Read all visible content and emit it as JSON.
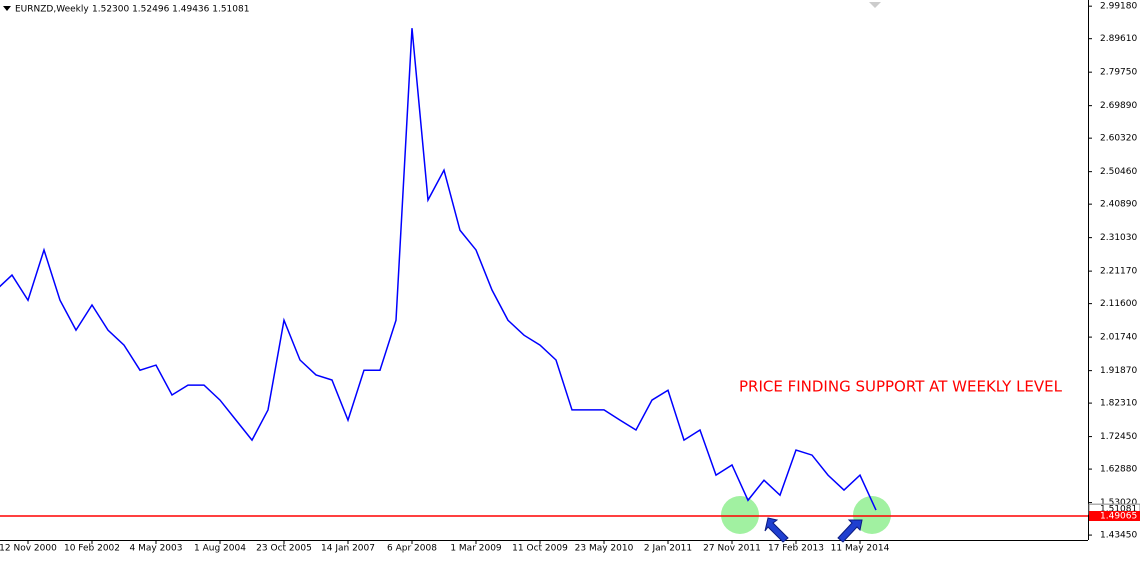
{
  "chart_data": {
    "type": "line",
    "title": "EURNZD,Weekly",
    "subtitle": "1.52300 1.52496 1.49436 1.51081",
    "annotation": "PRICE FINDING SUPPORT AT WEEKLY LEVEL",
    "categories": [
      null,
      null,
      "12 Nov 2000",
      null,
      null,
      null,
      "10 Feb 2002",
      null,
      null,
      null,
      "4 May 2003",
      null,
      null,
      null,
      "1 Aug 2004",
      null,
      null,
      null,
      "23 Oct 2005",
      null,
      null,
      null,
      "14 Jan 2007",
      null,
      null,
      null,
      "6 Apr 2008",
      null,
      null,
      null,
      "1 Mar 2009",
      null,
      null,
      null,
      "11 Oct 2009",
      null,
      null,
      null,
      "23 May 2010",
      null,
      null,
      null,
      "2 Jan 2011",
      null,
      null,
      null,
      "27 Nov 2011",
      null,
      null,
      null,
      "17 Feb 2013",
      null,
      null,
      null,
      "11 May 2014",
      null
    ],
    "values": [
      2.156,
      2.2,
      2.126,
      2.274,
      2.126,
      2.038,
      2.112,
      2.038,
      1.994,
      1.92,
      1.935,
      1.847,
      1.876,
      1.876,
      1.832,
      1.773,
      1.714,
      1.803,
      2.067,
      1.95,
      1.906,
      1.891,
      1.773,
      1.92,
      1.92,
      2.067,
      2.927,
      2.421,
      2.509,
      2.332,
      2.274,
      2.156,
      2.067,
      2.023,
      1.994,
      1.95,
      1.803,
      1.803,
      1.803,
      1.773,
      1.744,
      1.832,
      1.861,
      1.714,
      1.744,
      1.611,
      1.641,
      1.537,
      1.596,
      1.552,
      1.685,
      1.67,
      1.611,
      1.567,
      1.611,
      1.508
    ],
    "color": "#0000ff",
    "ylim": [
      1.42,
      3.01
    ],
    "yticks": [
      {
        "value": 2.9918,
        "label": "2.99180"
      },
      {
        "value": 2.8961,
        "label": "2.89610"
      },
      {
        "value": 2.7975,
        "label": "2.79750"
      },
      {
        "value": 2.6989,
        "label": "2.69890"
      },
      {
        "value": 2.6032,
        "label": "2.60320"
      },
      {
        "value": 2.5046,
        "label": "2.50460"
      },
      {
        "value": 2.4089,
        "label": "2.40890"
      },
      {
        "value": 2.3103,
        "label": "2.31030"
      },
      {
        "value": 2.2117,
        "label": "2.21170"
      },
      {
        "value": 2.116,
        "label": "2.11600"
      },
      {
        "value": 2.0174,
        "label": "2.01740"
      },
      {
        "value": 1.9187,
        "label": "1.91870"
      },
      {
        "value": 1.8231,
        "label": "1.82310"
      },
      {
        "value": 1.7245,
        "label": "1.72450"
      },
      {
        "value": 1.6288,
        "label": "1.62880"
      },
      {
        "value": 1.5302,
        "label": "1.53020"
      },
      {
        "value": 1.4345,
        "label": "1.43450"
      }
    ],
    "last_price": 1.51081,
    "support_level": 1.49065,
    "support_color": "#ff0000"
  }
}
